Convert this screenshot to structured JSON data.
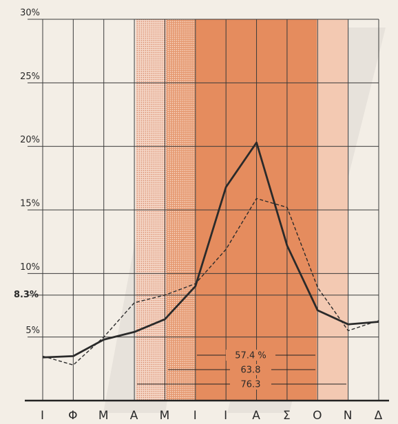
{
  "chart_data": {
    "type": "line",
    "categories": [
      "Ι",
      "Φ",
      "Μ",
      "Α",
      "Μ",
      "Ι",
      "Ι",
      "Α",
      "Σ",
      "Ο",
      "Ν",
      "Δ"
    ],
    "series": [
      {
        "color": "#2a2a2a",
        "style": "solid",
        "values": [
          3.4,
          3.5,
          4.8,
          5.4,
          6.4,
          9.0,
          16.8,
          20.3,
          12.2,
          7.1,
          6.0,
          6.2
        ]
      },
      {
        "color": "#2a2a2a",
        "style": "dashed",
        "values": [
          3.5,
          2.8,
          5.0,
          7.7,
          8.3,
          9.2,
          11.9,
          15.9,
          15.2,
          8.9,
          5.5,
          6.3
        ]
      }
    ],
    "ylim": [
      0,
      30
    ],
    "yticks": [
      {
        "value": 5,
        "label": "5%"
      },
      {
        "value": 8.3,
        "label": "8.3%"
      },
      {
        "value": 10,
        "label": "10%"
      },
      {
        "value": 15,
        "label": "15%"
      },
      {
        "value": 20,
        "label": "20%"
      },
      {
        "value": 25,
        "label": "25%"
      },
      {
        "value": 30,
        "label": "30%"
      }
    ],
    "annotations": [
      "57.4 %",
      "63.8",
      "76.3"
    ],
    "grid": true
  }
}
